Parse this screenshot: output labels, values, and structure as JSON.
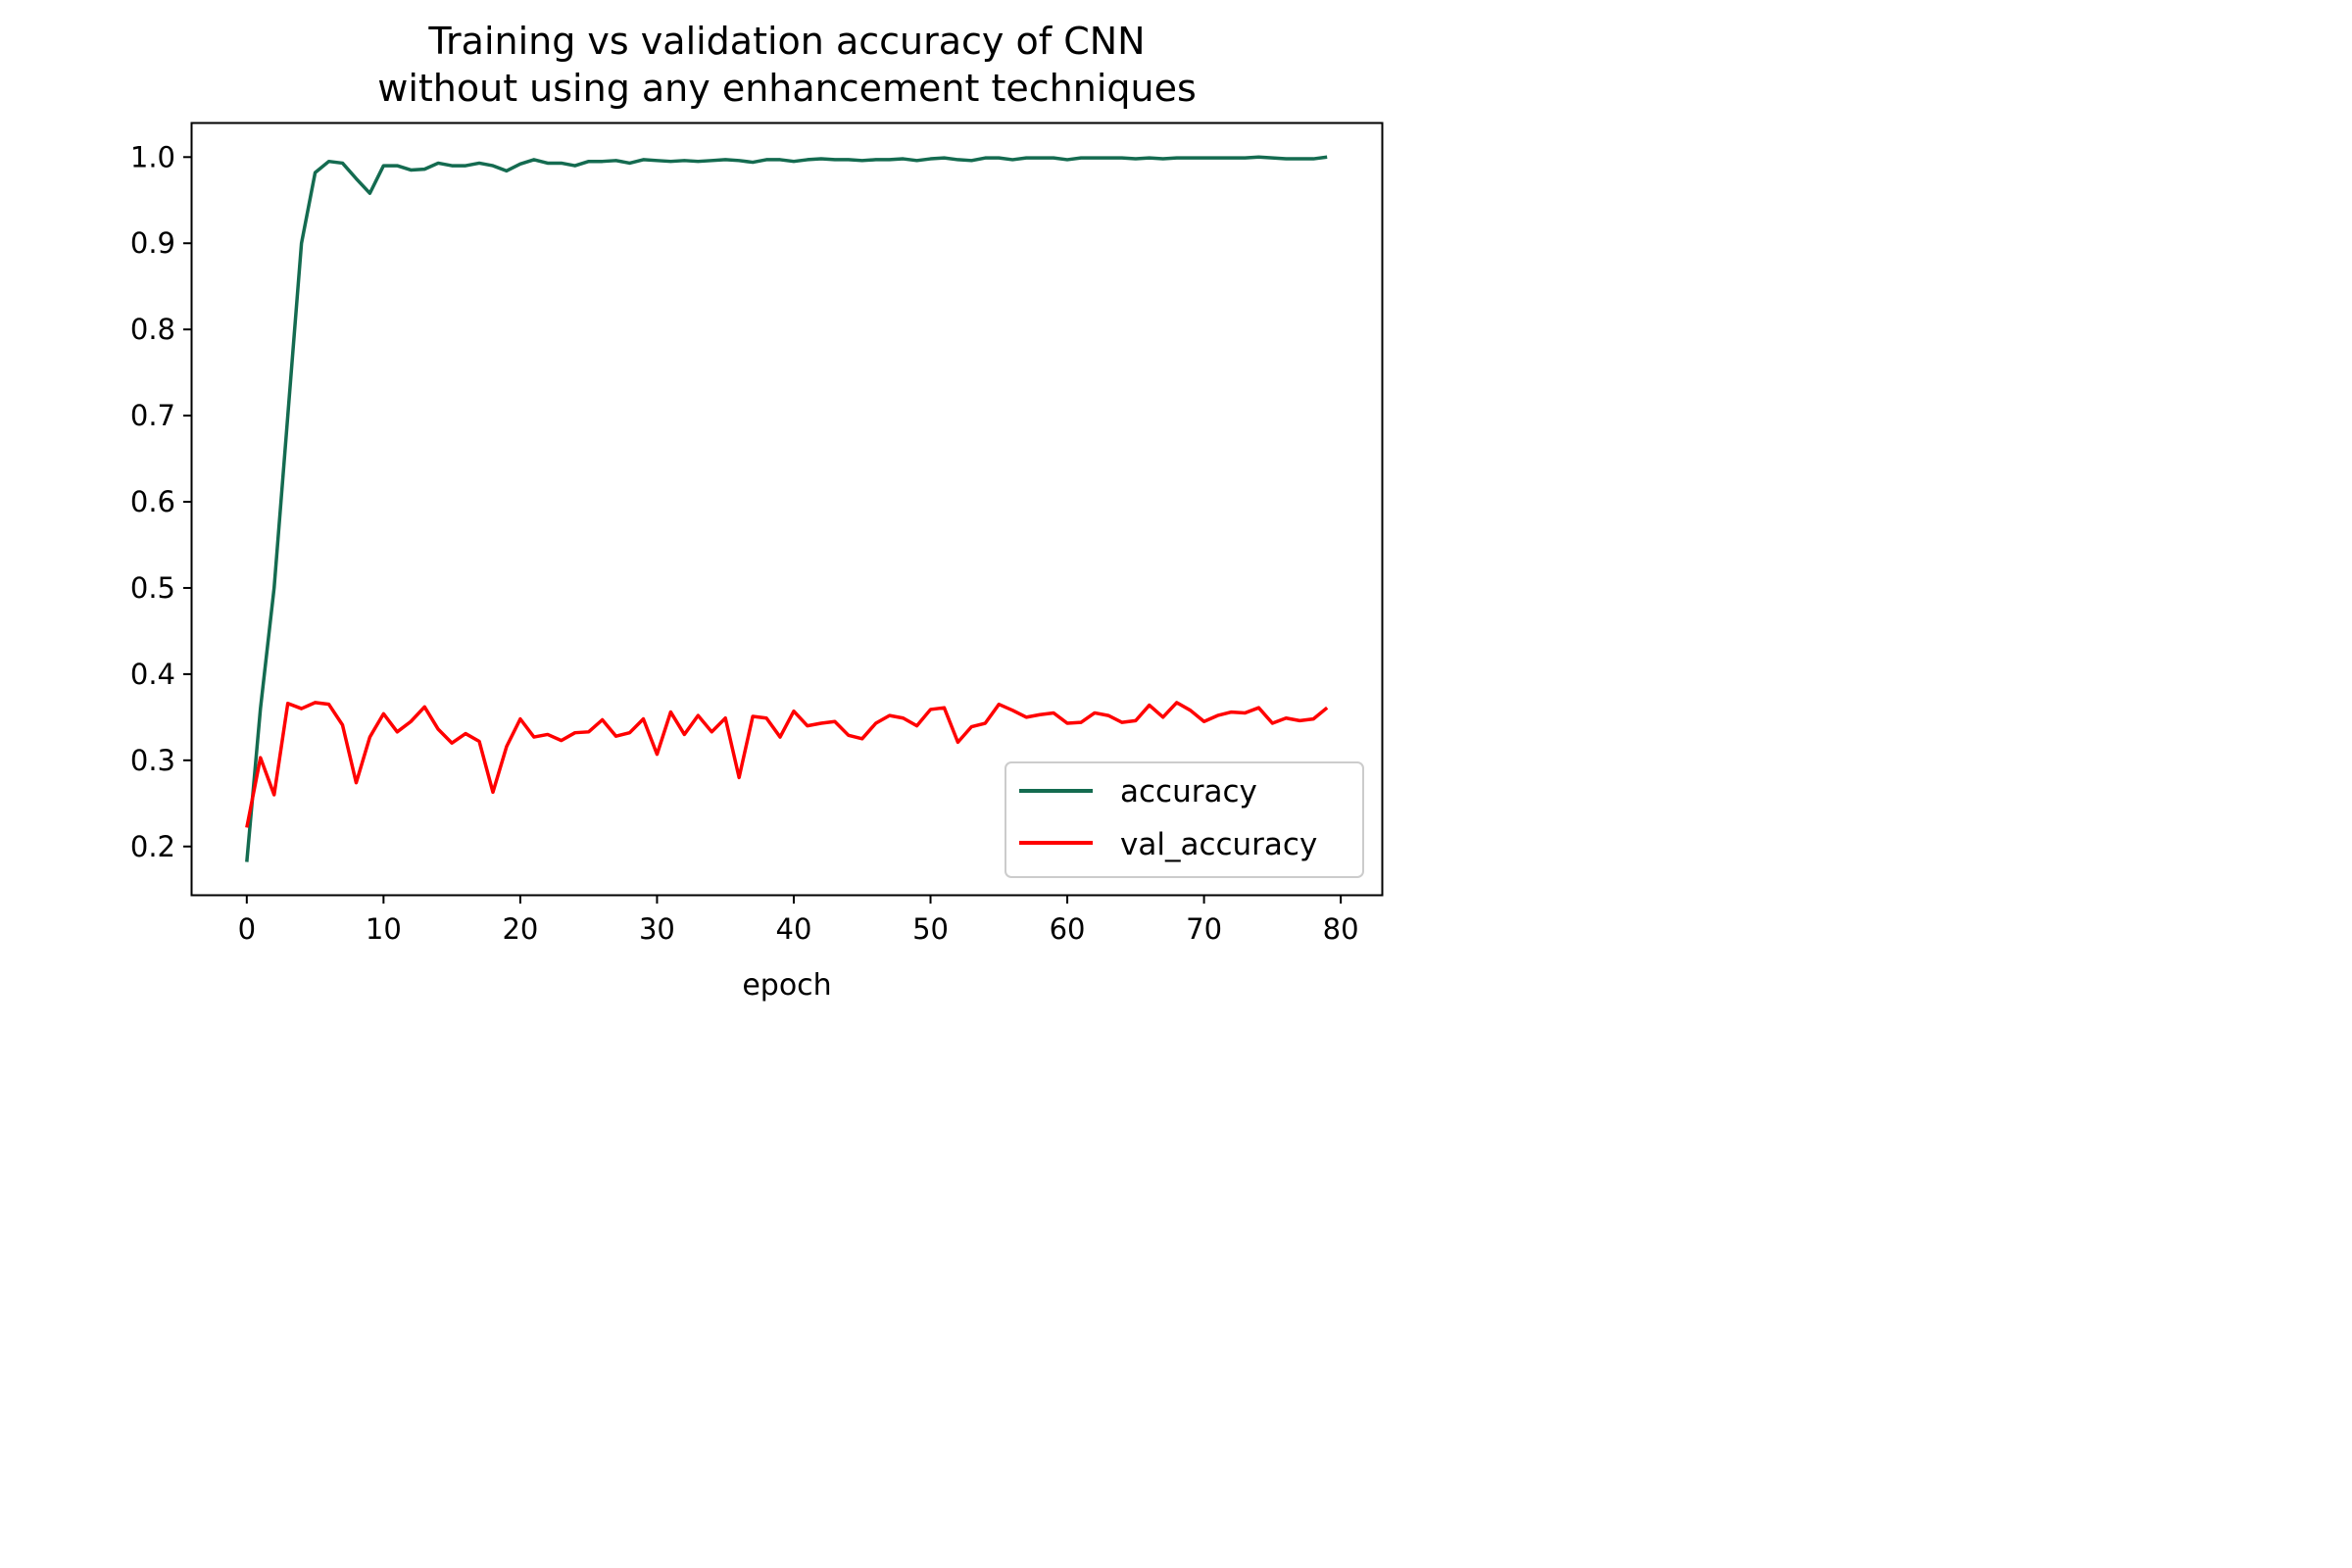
{
  "chart_data": {
    "type": "line",
    "title_line1": "Training vs validation accuracy of CNN",
    "title_line2": "without using any enhancement techniques",
    "xlabel": "epoch",
    "ylabel": "",
    "xlim": [
      -4,
      83
    ],
    "ylim": [
      0.144,
      1.039
    ],
    "xticks": [
      0,
      10,
      20,
      30,
      40,
      50,
      60,
      70,
      80
    ],
    "yticks": [
      0.2,
      0.3,
      0.4,
      0.5,
      0.6,
      0.7,
      0.8,
      0.9,
      1.0
    ],
    "ytick_labels": [
      "0.2",
      "0.3",
      "0.4",
      "0.5",
      "0.6",
      "0.7",
      "0.8",
      "0.9",
      "1.0"
    ],
    "grid": false,
    "legend_position": "lower-right",
    "x": [
      0,
      1,
      2,
      3,
      4,
      5,
      6,
      7,
      8,
      9,
      10,
      11,
      12,
      13,
      14,
      15,
      16,
      17,
      18,
      19,
      20,
      21,
      22,
      23,
      24,
      25,
      26,
      27,
      28,
      29,
      30,
      31,
      32,
      33,
      34,
      35,
      36,
      37,
      38,
      39,
      40,
      41,
      42,
      43,
      44,
      45,
      46,
      47,
      48,
      49,
      50,
      51,
      52,
      53,
      54,
      55,
      56,
      57,
      58,
      59,
      60,
      61,
      62,
      63,
      64,
      65,
      66,
      67,
      68,
      69,
      70,
      71,
      72,
      73,
      74,
      75,
      76,
      77,
      78,
      79
    ],
    "series": [
      {
        "name": "accuracy",
        "color": "#146b50",
        "values": [
          0.182,
          0.36,
          0.5,
          0.7,
          0.9,
          0.982,
          0.995,
          0.993,
          0.975,
          0.958,
          0.99,
          0.99,
          0.985,
          0.986,
          0.993,
          0.99,
          0.99,
          0.993,
          0.99,
          0.984,
          0.992,
          0.997,
          0.993,
          0.993,
          0.99,
          0.995,
          0.995,
          0.996,
          0.993,
          0.997,
          0.996,
          0.995,
          0.996,
          0.995,
          0.996,
          0.997,
          0.996,
          0.994,
          0.997,
          0.997,
          0.995,
          0.997,
          0.998,
          0.997,
          0.997,
          0.996,
          0.997,
          0.997,
          0.998,
          0.996,
          0.998,
          0.999,
          0.997,
          0.996,
          0.999,
          0.999,
          0.997,
          0.999,
          0.999,
          0.999,
          0.997,
          0.999,
          0.999,
          0.999,
          0.999,
          0.998,
          0.999,
          0.998,
          0.999,
          0.999,
          0.999,
          0.999,
          0.999,
          0.999,
          1.0,
          0.999,
          0.998,
          0.998,
          0.998,
          1.0
        ]
      },
      {
        "name": "val_accuracy",
        "color": "#ff0000",
        "values": [
          0.222,
          0.303,
          0.26,
          0.366,
          0.36,
          0.367,
          0.365,
          0.341,
          0.274,
          0.327,
          0.354,
          0.333,
          0.345,
          0.362,
          0.336,
          0.32,
          0.331,
          0.322,
          0.263,
          0.316,
          0.348,
          0.327,
          0.33,
          0.323,
          0.332,
          0.333,
          0.347,
          0.328,
          0.332,
          0.348,
          0.307,
          0.356,
          0.33,
          0.352,
          0.333,
          0.349,
          0.28,
          0.351,
          0.349,
          0.327,
          0.357,
          0.34,
          0.343,
          0.345,
          0.329,
          0.325,
          0.343,
          0.352,
          0.349,
          0.34,
          0.359,
          0.361,
          0.321,
          0.339,
          0.343,
          0.365,
          0.358,
          0.35,
          0.353,
          0.355,
          0.343,
          0.344,
          0.355,
          0.352,
          0.344,
          0.346,
          0.364,
          0.35,
          0.367,
          0.358,
          0.345,
          0.352,
          0.356,
          0.355,
          0.361,
          0.343,
          0.349,
          0.346,
          0.348,
          0.361
        ]
      }
    ]
  }
}
